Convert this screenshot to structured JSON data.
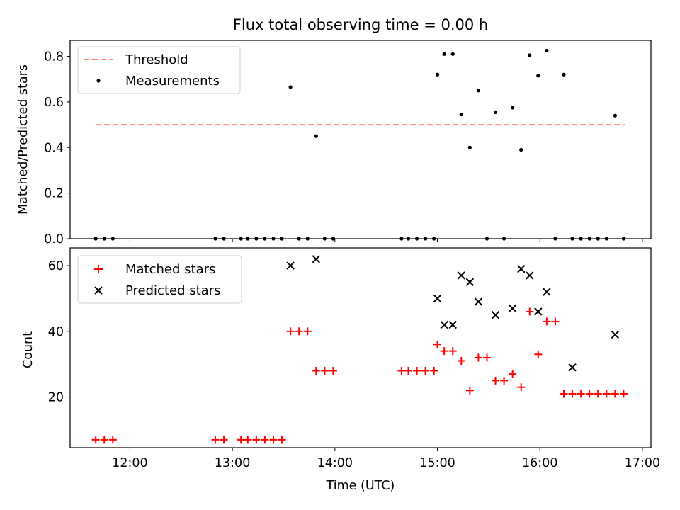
{
  "chart_data": [
    {
      "type": "scatter",
      "title": "Flux total observing time = 0.00 h",
      "xlabel": "",
      "ylabel": "Matched/Predicted stars",
      "xlim": [
        "11:25",
        "17:05"
      ],
      "ylim": [
        0,
        0.87
      ],
      "yticks": [
        0.0,
        0.2,
        0.4,
        0.6,
        0.8
      ],
      "ytick_labels": [
        "0.0",
        "0.2",
        "0.4",
        "0.6",
        "0.8"
      ],
      "grid": false,
      "legend_position": "upper-left",
      "series": [
        {
          "name": "Threshold",
          "kind": "line",
          "style": "dashed",
          "color": "#ff7f7f",
          "x": [
            "11:40",
            "16:50"
          ],
          "y": [
            0.5,
            0.5
          ]
        },
        {
          "name": "Measurements",
          "kind": "scatter",
          "marker": "dot",
          "color": "#000000",
          "x": [
            "11:40",
            "11:45",
            "11:50",
            "12:50",
            "12:55",
            "13:05",
            "13:09",
            "13:14",
            "13:19",
            "13:24",
            "13:29",
            "13:34",
            "13:39",
            "13:44",
            "13:49",
            "13:54",
            "13:59",
            "14:39",
            "14:43",
            "14:48",
            "14:53",
            "14:58",
            "15:00",
            "15:04",
            "15:09",
            "15:14",
            "15:19",
            "15:24",
            "15:29",
            "15:34",
            "15:39",
            "15:44",
            "15:49",
            "15:54",
            "15:59",
            "16:04",
            "16:09",
            "16:14",
            "16:19",
            "16:24",
            "16:29",
            "16:34",
            "16:39",
            "16:44",
            "16:49"
          ],
          "y": [
            0,
            0,
            0,
            0,
            0,
            0,
            0,
            0,
            0,
            0,
            0,
            0.665,
            0,
            0,
            0.45,
            0,
            0,
            0,
            0,
            0,
            0,
            0,
            0.72,
            0.81,
            0.81,
            0.545,
            0.4,
            0.65,
            0,
            0.555,
            0,
            0.575,
            0.39,
            0.805,
            0.715,
            0.825,
            0,
            0.72,
            0,
            0,
            0,
            0,
            0,
            0.54,
            0
          ]
        }
      ]
    },
    {
      "type": "scatter",
      "xlabel": "Time (UTC)",
      "ylabel": "Count",
      "xlim": [
        "11:25",
        "17:05"
      ],
      "ylim": [
        4.6,
        65.4
      ],
      "xtick_labels": [
        "12:00",
        "13:00",
        "14:00",
        "15:00",
        "16:00",
        "17:00"
      ],
      "yticks": [
        20,
        40,
        60
      ],
      "ytick_labels": [
        "20",
        "40",
        "60"
      ],
      "grid": false,
      "legend_position": "upper-left",
      "series": [
        {
          "name": "Matched stars",
          "marker": "plus",
          "color": "#ff0000",
          "x": [
            "11:40",
            "11:45",
            "11:50",
            "12:50",
            "12:55",
            "13:05",
            "13:09",
            "13:14",
            "13:19",
            "13:24",
            "13:29",
            "13:34",
            "13:39",
            "13:44",
            "13:49",
            "13:54",
            "13:59",
            "14:39",
            "14:43",
            "14:48",
            "14:53",
            "14:58",
            "15:00",
            "15:04",
            "15:09",
            "15:14",
            "15:19",
            "15:24",
            "15:29",
            "15:34",
            "15:39",
            "15:44",
            "15:49",
            "15:54",
            "15:59",
            "16:04",
            "16:09",
            "16:14",
            "16:19",
            "16:24",
            "16:29",
            "16:34",
            "16:39",
            "16:44",
            "16:49"
          ],
          "y": [
            7,
            7,
            7,
            7,
            7,
            7,
            7,
            7,
            7,
            7,
            7,
            40,
            40,
            40,
            28,
            28,
            28,
            28,
            28,
            28,
            28,
            28,
            36,
            34,
            34,
            31,
            22,
            32,
            32,
            25,
            25,
            27,
            23,
            46,
            33,
            43,
            43,
            21,
            21,
            21,
            21,
            21,
            21,
            21,
            21
          ]
        },
        {
          "name": "Predicted stars",
          "marker": "x",
          "color": "#000000",
          "x": [
            "13:34",
            "13:49",
            "15:00",
            "15:04",
            "15:09",
            "15:14",
            "15:19",
            "15:24",
            "15:34",
            "15:44",
            "15:49",
            "15:54",
            "15:59",
            "16:04",
            "16:19",
            "16:44"
          ],
          "y": [
            60,
            62,
            50,
            42,
            42,
            57,
            55,
            49,
            45,
            47,
            59,
            57,
            46,
            52,
            29,
            39
          ]
        }
      ]
    }
  ]
}
